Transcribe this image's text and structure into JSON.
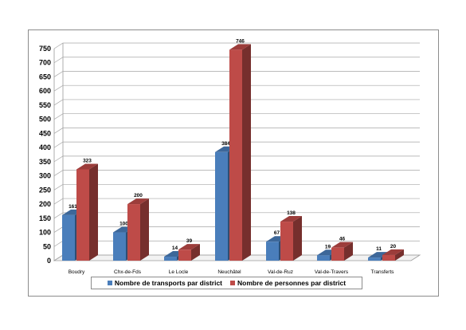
{
  "chart_data": {
    "type": "bar",
    "categories": [
      "Boudry",
      "Chx-de-Fds",
      "Le Locle",
      "Neuchâtel",
      "Val-de-Ruz",
      "Val-de-Travers",
      "Transferts"
    ],
    "series": [
      {
        "name": "Nombre de transports par district",
        "values": [
          161,
          100,
          14,
          384,
          67,
          19,
          11
        ],
        "color": "#4a7ebb"
      },
      {
        "name": "Nombre de personnes par district",
        "values": [
          323,
          200,
          39,
          746,
          138,
          46,
          20
        ],
        "color": "#be4b48"
      }
    ],
    "yticks": [
      0,
      50,
      100,
      150,
      200,
      250,
      300,
      350,
      400,
      450,
      500,
      550,
      600,
      650,
      700,
      750
    ],
    "ylim": [
      0,
      750
    ],
    "grid": true,
    "legend_position": "bottom",
    "title": "",
    "xlabel": "",
    "ylabel": ""
  }
}
